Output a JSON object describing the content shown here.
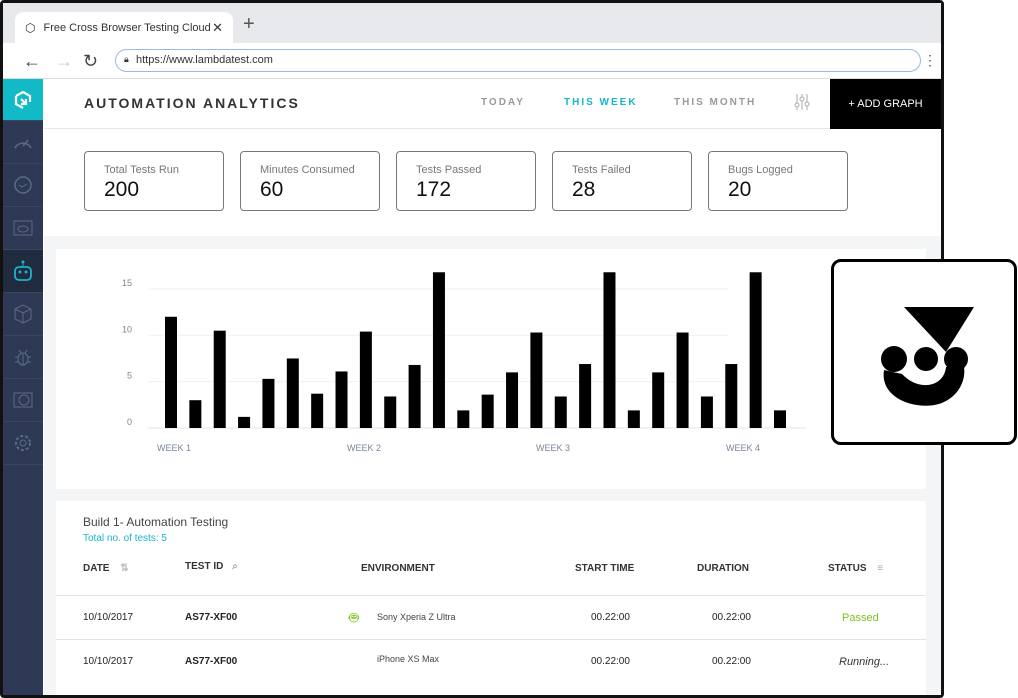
{
  "browser": {
    "tab_title": "Free Cross Browser Testing Cloud",
    "url": "https://www.lambdatest.com"
  },
  "header": {
    "title": "AUTOMATION ANALYTICS",
    "ranges": [
      "TODAY",
      "THIS WEEK",
      "THIS MONTH"
    ],
    "active_range": "THIS WEEK",
    "add_graph": "+ ADD GRAPH"
  },
  "sidebar": {
    "items": [
      "logo",
      "dashboard",
      "history",
      "visual-ui",
      "automation",
      "builds",
      "issues",
      "integrations",
      "settings"
    ],
    "active": "automation"
  },
  "stats": [
    {
      "label": "Total Tests Run",
      "value": "200"
    },
    {
      "label": "Minutes Consumed",
      "value": "60"
    },
    {
      "label": "Tests Passed",
      "value": "172"
    },
    {
      "label": "Tests Failed",
      "value": "28"
    },
    {
      "label": "Bugs Logged",
      "value": "20"
    }
  ],
  "chart_data": {
    "type": "bar",
    "ylim": [
      0,
      16.8
    ],
    "yticks": [
      "0",
      "5",
      "10",
      "15"
    ],
    "xlabels": [
      "WEEK 1",
      "WEEK 2",
      "WEEK 3",
      "WEEK 4"
    ],
    "grid": true,
    "color": "#000000",
    "values": [
      12,
      3,
      10.5,
      1.2,
      5.3,
      7.5,
      3.7,
      6.1,
      10.4,
      3.4,
      6.8,
      16.8,
      1.9,
      3.6,
      6,
      10.3,
      3.4,
      6.9,
      16.8,
      1.9,
      6,
      10.3,
      3.4,
      6.9,
      16.8,
      1.9
    ]
  },
  "table": {
    "build": "Build 1- Automation Testing",
    "total": "Total no. of tests: 5",
    "headers": [
      "DATE",
      "TEST ID",
      "ENVIRONMENT",
      "START TIME",
      "DURATION",
      "STATUS"
    ],
    "rows": [
      {
        "date": "10/10/2017",
        "id": "AS77-XF00",
        "os": "android",
        "env": "Sony Xperia Z Ultra",
        "start": "00.22:00",
        "duration": "00.22:00",
        "status": "Passed"
      },
      {
        "date": "10/10/2017",
        "id": "AS77-XF00",
        "os": "apple",
        "env": "iPhone XS Max",
        "start": "00.22:00",
        "duration": "00.22:00",
        "status": "Running..."
      }
    ]
  },
  "colors": {
    "accent": "#17b6c9",
    "sidebar": "#2e3a55",
    "passed": "#7dc21e"
  }
}
